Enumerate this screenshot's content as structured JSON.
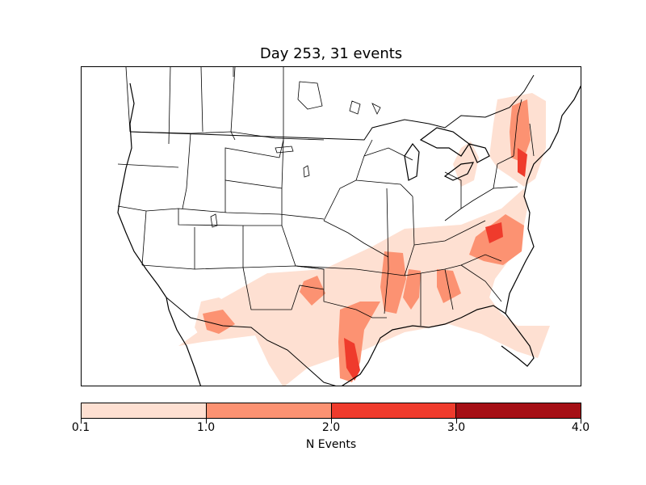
{
  "title": "Day 253, 31 events",
  "colorbar": {
    "label": "N Events",
    "ticks": [
      "0.1",
      "1.0",
      "2.0",
      "3.0",
      "4.0"
    ],
    "colors": [
      "#fee0d2",
      "#fc9272",
      "#ef3b2c",
      "#a50f15"
    ]
  },
  "map": {
    "region": "Contiguous United States",
    "basemap_features": [
      "coastlines",
      "country borders",
      "state borders"
    ],
    "density_level_colors": {
      "level_1": "#fee0d2",
      "level_2": "#fc9272",
      "level_3": "#ef3b2c"
    }
  }
}
